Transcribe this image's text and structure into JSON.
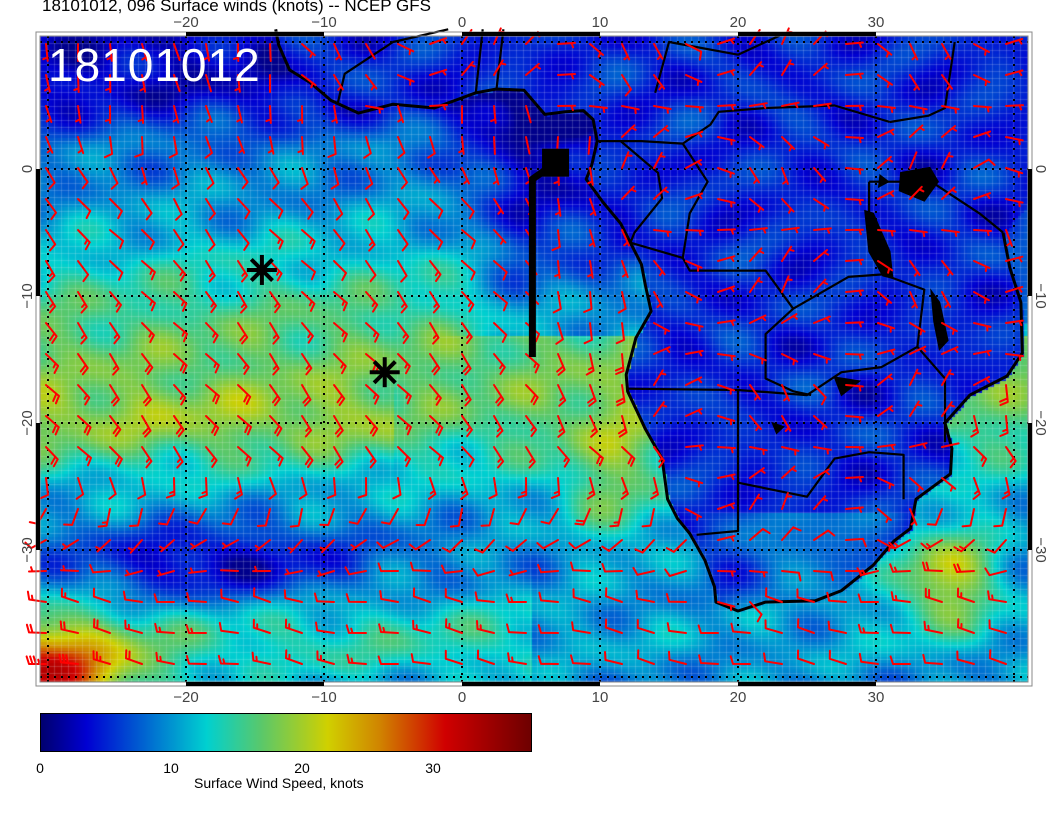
{
  "header": {
    "title": "18101012, 096 Surface winds (knots) -- NCEP GFS"
  },
  "map": {
    "overlay_label": "18101012",
    "lon_ticks": [
      "−20",
      "−10",
      "0",
      "10",
      "20",
      "30"
    ],
    "lat_ticks": [
      "0",
      "−10",
      "−20",
      "−30"
    ],
    "barb_color": "#ff0000",
    "coast_color": "#000000",
    "markers": [
      "asterisk-marker",
      "asterisk-marker",
      "flag-marker"
    ]
  },
  "colorbar": {
    "label": "Surface Wind Speed, knots",
    "ticks": [
      "0",
      "10",
      "20",
      "30"
    ],
    "range": [
      0,
      37.6
    ],
    "stops": [
      {
        "v": 0,
        "c": "#00006e"
      },
      {
        "v": 3.5,
        "c": "#0000d2"
      },
      {
        "v": 12.7,
        "c": "#00d0d0"
      },
      {
        "v": 17,
        "c": "#5cc868"
      },
      {
        "v": 22,
        "c": "#d0d000"
      },
      {
        "v": 26,
        "c": "#d08400"
      },
      {
        "v": 31,
        "c": "#d00000"
      },
      {
        "v": 37.6,
        "c": "#6e0000"
      }
    ]
  }
}
